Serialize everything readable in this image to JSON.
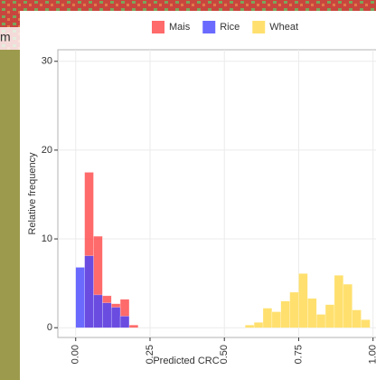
{
  "background_text": "m",
  "chart_data": {
    "type": "histogram",
    "x_label": "Predicted CRC",
    "y_label": "Relative frequency",
    "legend": "top",
    "grid": true,
    "xlim": [
      -0.06,
      1.01
    ],
    "ylim": [
      -1.1,
      31.3
    ],
    "xticks": [
      {
        "value": 0,
        "label": "0.00"
      },
      {
        "value": 0.25,
        "label": "0.25"
      },
      {
        "value": 0.5,
        "label": "0.50"
      },
      {
        "value": 0.75,
        "label": "0.75"
      },
      {
        "value": 1,
        "label": "1.00"
      }
    ],
    "yticks": [
      0,
      10,
      20,
      30
    ],
    "bins": [
      0,
      0.03,
      0.06,
      0.09,
      0.12,
      0.15,
      0.18,
      0.21,
      0.24,
      0.27,
      0.3,
      0.33,
      0.36,
      0.39,
      0.42,
      0.45,
      0.48,
      0.51,
      0.54,
      0.57,
      0.6,
      0.63,
      0.66,
      0.69,
      0.72,
      0.75,
      0.78,
      0.81,
      0.84,
      0.87,
      0.9,
      0.93,
      0.96,
      0.99,
      1.02
    ],
    "series": [
      {
        "name": "Mais",
        "color": "#ff4545",
        "values": [
          0,
          17.5,
          10.3,
          3.6,
          2.7,
          3.2,
          0.3,
          0,
          0,
          0,
          0,
          0,
          0,
          0,
          0,
          0,
          0,
          0,
          0,
          0,
          0,
          0,
          0,
          0,
          0,
          0,
          0,
          0,
          0,
          0,
          0,
          0,
          0,
          0
        ]
      },
      {
        "name": "Rice",
        "color": "#4545ff",
        "values": [
          6.8,
          8.1,
          3.7,
          2.8,
          2.3,
          1.3,
          0,
          0,
          0,
          0,
          0,
          0,
          0,
          0,
          0,
          0,
          0,
          0,
          0,
          0,
          0,
          0,
          0,
          0,
          0,
          0,
          0,
          0,
          0,
          0,
          0,
          0,
          0,
          0
        ]
      },
      {
        "name": "Wheat",
        "color": "#ffd84a",
        "values": [
          0,
          0,
          0,
          0,
          0,
          0,
          0,
          0,
          0,
          0,
          0,
          0,
          0,
          0,
          0,
          0,
          0,
          0,
          0,
          0.3,
          0.6,
          2.2,
          1.8,
          3.0,
          4.0,
          6.1,
          3.3,
          1.5,
          2.6,
          5.9,
          4.9,
          2.0,
          0.9,
          0
        ]
      }
    ]
  }
}
